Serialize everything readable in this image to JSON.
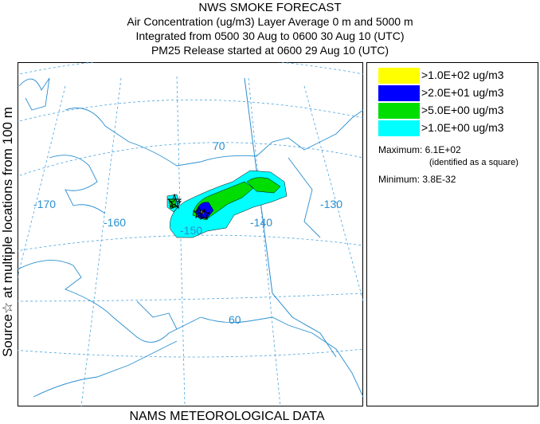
{
  "title": {
    "line1": "NWS SMOKE FORECAST",
    "line2": "Air Concentration (ug/m3) Layer Average    0 m and  5000 m",
    "line3": "Integrated from 0500 30 Aug to 0600 30 Aug 10 (UTC)",
    "line4": "PM25 Release started at 0600 29 Aug 10 (UTC)"
  },
  "side_label": "Source☆   at multiple locations   from  100 m",
  "footer": "NAMS METEOROLOGICAL DATA",
  "legend": {
    "items": [
      {
        "label": ">1.0E+02 ug/m3",
        "color": "#ffff00"
      },
      {
        "label": ">2.0E+01 ug/m3",
        "color": "#0000ff"
      },
      {
        "label": ">5.0E+00 ug/m3",
        "color": "#00dd00"
      },
      {
        "label": ">1.0E+00 ug/m3",
        "color": "#00ffff"
      }
    ],
    "maximum": "Maximum: 6.1E+02",
    "maximum_note": "(identified as a square)",
    "minimum": "Minimum: 3.8E-32"
  },
  "map": {
    "lon_labels": [
      "-170",
      "-160",
      "-150",
      "-140",
      "-130"
    ],
    "lat_labels": [
      "70",
      "60"
    ],
    "grid_color": "#4aa3df",
    "coast_color": "#2a8fd0"
  }
}
